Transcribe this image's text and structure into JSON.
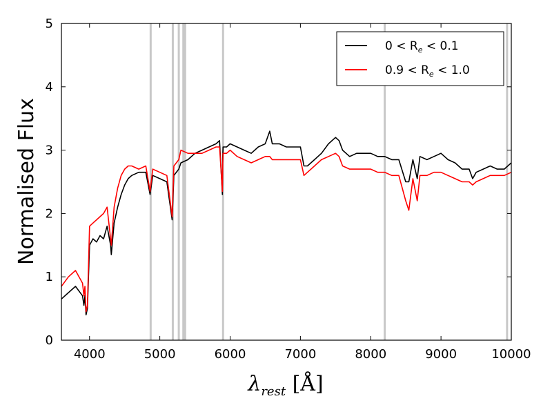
{
  "chart_data": {
    "type": "line",
    "title": "",
    "xlabel": "λrest [Å]",
    "xlabel_main": "λ",
    "xlabel_sub": "rest",
    "xlabel_unit": " [Å]",
    "ylabel": "Normalised Flux",
    "xlim": [
      3600,
      10000
    ],
    "ylim": [
      0,
      5
    ],
    "xticks": [
      4000,
      5000,
      6000,
      7000,
      8000,
      9000,
      10000
    ],
    "yticks": [
      0,
      1,
      2,
      3,
      4,
      5
    ],
    "xtick_labels": [
      "4000",
      "5000",
      "6000",
      "7000",
      "8000",
      "9000",
      "10000"
    ],
    "ytick_labels": [
      "0",
      "1",
      "2",
      "3",
      "4",
      "5"
    ],
    "grid": false,
    "legend_position": "top-right",
    "shaded_regions": [
      [
        4855,
        4870
      ],
      [
        5170,
        5185
      ],
      [
        5255,
        5275
      ],
      [
        5320,
        5335
      ],
      [
        5345,
        5360
      ],
      [
        5885,
        5902
      ],
      [
        8185,
        8200
      ],
      [
        9925,
        9945
      ]
    ],
    "series": [
      {
        "name": "0 < Re < 0.1",
        "legend": {
          "pre": "0 < R",
          "sub": "e",
          "post": " < 0.1"
        },
        "color": "#000000",
        "x": [
          3600,
          3700,
          3800,
          3900,
          3920,
          3935,
          3950,
          3970,
          4000,
          4050,
          4100,
          4150,
          4200,
          4250,
          4300,
          4310,
          4350,
          4400,
          4450,
          4500,
          4550,
          4600,
          4700,
          4800,
          4861,
          4900,
          5000,
          5100,
          5175,
          5200,
          5270,
          5300,
          5400,
          5500,
          5600,
          5700,
          5800,
          5850,
          5890,
          5895,
          5900,
          5950,
          6000,
          6100,
          6200,
          6300,
          6400,
          6500,
          6563,
          6600,
          6700,
          6800,
          6900,
          7000,
          7050,
          7100,
          7200,
          7300,
          7400,
          7500,
          7550,
          7600,
          7700,
          7800,
          7900,
          8000,
          8100,
          8200,
          8300,
          8400,
          8498,
          8542,
          8600,
          8662,
          8700,
          8800,
          8900,
          9000,
          9100,
          9200,
          9300,
          9400,
          9450,
          9500,
          9600,
          9700,
          9800,
          9900,
          10000
        ],
        "values": [
          0.65,
          0.75,
          0.85,
          0.7,
          0.55,
          0.7,
          0.4,
          0.5,
          1.5,
          1.6,
          1.55,
          1.65,
          1.6,
          1.8,
          1.5,
          1.35,
          1.85,
          2.1,
          2.3,
          2.45,
          2.55,
          2.6,
          2.65,
          2.65,
          2.3,
          2.6,
          2.55,
          2.5,
          1.9,
          2.6,
          2.7,
          2.8,
          2.85,
          2.95,
          3.0,
          3.05,
          3.1,
          3.15,
          2.3,
          2.9,
          3.05,
          3.05,
          3.1,
          3.05,
          3.0,
          2.95,
          3.05,
          3.1,
          3.3,
          3.1,
          3.1,
          3.05,
          3.05,
          3.05,
          2.75,
          2.75,
          2.85,
          2.95,
          3.1,
          3.2,
          3.15,
          3.0,
          2.9,
          2.95,
          2.95,
          2.95,
          2.9,
          2.9,
          2.85,
          2.85,
          2.5,
          2.5,
          2.85,
          2.55,
          2.9,
          2.85,
          2.9,
          2.95,
          2.85,
          2.8,
          2.7,
          2.7,
          2.55,
          2.65,
          2.7,
          2.75,
          2.7,
          2.7,
          2.8
        ]
      },
      {
        "name": "0.9 < Re < 1.0",
        "legend": {
          "pre": "0.9 < R",
          "sub": "e",
          "post": " < 1.0"
        },
        "color": "#ff0000",
        "x": [
          3600,
          3700,
          3800,
          3900,
          3920,
          3935,
          3950,
          3970,
          4000,
          4050,
          4100,
          4150,
          4200,
          4250,
          4300,
          4310,
          4350,
          4400,
          4450,
          4500,
          4550,
          4600,
          4700,
          4800,
          4861,
          4900,
          5000,
          5100,
          5175,
          5200,
          5270,
          5300,
          5400,
          5500,
          5600,
          5700,
          5800,
          5850,
          5890,
          5895,
          5900,
          5950,
          6000,
          6100,
          6200,
          6300,
          6400,
          6500,
          6563,
          6600,
          6700,
          6800,
          6900,
          7000,
          7050,
          7100,
          7200,
          7300,
          7400,
          7500,
          7550,
          7600,
          7700,
          7800,
          7900,
          8000,
          8100,
          8200,
          8300,
          8400,
          8498,
          8542,
          8600,
          8662,
          8700,
          8800,
          8900,
          9000,
          9100,
          9200,
          9300,
          9400,
          9450,
          9500,
          9600,
          9700,
          9800,
          9900,
          10000
        ],
        "values": [
          0.85,
          1.0,
          1.1,
          0.9,
          0.7,
          0.85,
          0.45,
          0.55,
          1.8,
          1.85,
          1.9,
          1.95,
          2.0,
          2.1,
          1.6,
          1.5,
          2.1,
          2.4,
          2.6,
          2.7,
          2.75,
          2.75,
          2.7,
          2.75,
          2.35,
          2.7,
          2.65,
          2.6,
          1.95,
          2.75,
          2.85,
          3.0,
          2.95,
          2.95,
          2.95,
          3.0,
          3.05,
          3.05,
          2.35,
          2.8,
          2.95,
          2.95,
          3.0,
          2.9,
          2.85,
          2.8,
          2.85,
          2.9,
          2.9,
          2.85,
          2.85,
          2.85,
          2.85,
          2.85,
          2.6,
          2.65,
          2.75,
          2.85,
          2.9,
          2.95,
          2.9,
          2.75,
          2.7,
          2.7,
          2.7,
          2.7,
          2.65,
          2.65,
          2.6,
          2.6,
          2.2,
          2.05,
          2.55,
          2.2,
          2.6,
          2.6,
          2.65,
          2.65,
          2.6,
          2.55,
          2.5,
          2.5,
          2.45,
          2.5,
          2.55,
          2.6,
          2.6,
          2.6,
          2.65
        ]
      }
    ]
  }
}
